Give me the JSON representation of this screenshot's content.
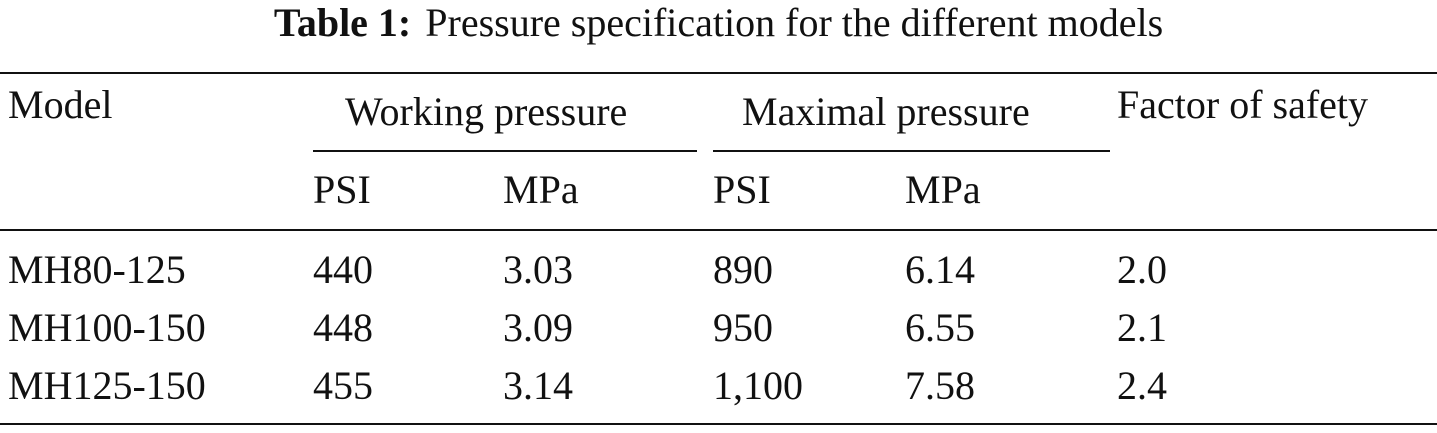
{
  "caption": {
    "label": "Table 1:",
    "title": "Pressure specification for the different models"
  },
  "table": {
    "header": {
      "model": "Model",
      "working": "Working pressure",
      "maximal": "Maximal pressure",
      "safety": "Factor of safety"
    },
    "subheader": [
      "PSI",
      "MPa",
      "PSI",
      "MPa"
    ],
    "rows": [
      [
        "MH80-125",
        "440",
        "3.03",
        "890",
        "6.14",
        "2.0"
      ],
      [
        "MH100-150",
        "448",
        "3.09",
        "950",
        "6.55",
        "2.1"
      ],
      [
        "MH125-150",
        "455",
        "3.14",
        "1,100",
        "7.58",
        "2.4"
      ]
    ]
  }
}
